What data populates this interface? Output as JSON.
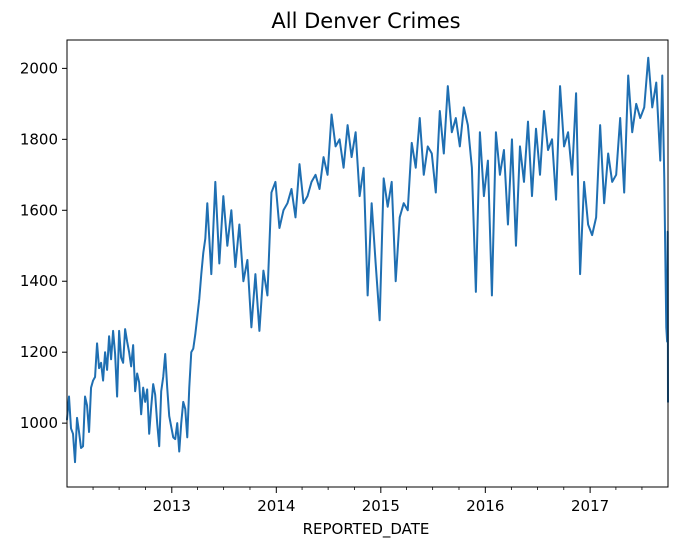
{
  "chart_data": {
    "type": "line",
    "title": "All Denver Crimes",
    "xlabel": "REPORTED_DATE",
    "ylabel": "",
    "x_type": "date",
    "xlim": [
      "2012-01-01",
      "2017-09-30"
    ],
    "ylim": [
      820,
      2080
    ],
    "x_ticks": [
      {
        "value": "2013-01-01",
        "label": "2013"
      },
      {
        "value": "2014-01-01",
        "label": "2014"
      },
      {
        "value": "2015-01-01",
        "label": "2015"
      },
      {
        "value": "2016-01-01",
        "label": "2016"
      },
      {
        "value": "2017-01-01",
        "label": "2017"
      }
    ],
    "y_ticks": [
      1000,
      1200,
      1400,
      1600,
      1800,
      2000
    ],
    "grid": false,
    "legend": "none",
    "color": "#1f6fb2",
    "series": [
      {
        "x": [
          "2012-01-01",
          "2012-01-08",
          "2012-01-15",
          "2012-01-22",
          "2012-01-29",
          "2012-02-05",
          "2012-02-12",
          "2012-02-19",
          "2012-02-26",
          "2012-03-04",
          "2012-03-11",
          "2012-03-18",
          "2012-03-25",
          "2012-04-01",
          "2012-04-08",
          "2012-04-15",
          "2012-04-22",
          "2012-04-29",
          "2012-05-06",
          "2012-05-13",
          "2012-05-20",
          "2012-05-27",
          "2012-06-03",
          "2012-06-10",
          "2012-06-17",
          "2012-06-24",
          "2012-07-01",
          "2012-07-08",
          "2012-07-15",
          "2012-07-22",
          "2012-07-29",
          "2012-08-05",
          "2012-08-12",
          "2012-08-19",
          "2012-08-26",
          "2012-09-02",
          "2012-09-09",
          "2012-09-16",
          "2012-09-23",
          "2012-09-30",
          "2012-10-07",
          "2012-10-14",
          "2012-10-21",
          "2012-10-28",
          "2012-11-04",
          "2012-11-11",
          "2012-11-18",
          "2012-11-25",
          "2012-12-02",
          "2012-12-09",
          "2012-12-16",
          "2012-12-23",
          "2012-12-30",
          "2013-01-06",
          "2013-01-13",
          "2013-01-20",
          "2013-01-27",
          "2013-02-03",
          "2013-02-10",
          "2013-02-17",
          "2013-02-24",
          "2013-03-03",
          "2013-03-10",
          "2013-03-17",
          "2013-03-24",
          "2013-03-31",
          "2013-04-07",
          "2013-04-14",
          "2013-04-21",
          "2013-04-28",
          "2013-05-05",
          "2013-05-19",
          "2013-06-02",
          "2013-06-16",
          "2013-06-30",
          "2013-07-14",
          "2013-07-28",
          "2013-08-11",
          "2013-08-25",
          "2013-09-08",
          "2013-09-22",
          "2013-10-06",
          "2013-10-20",
          "2013-11-03",
          "2013-11-17",
          "2013-12-01",
          "2013-12-15",
          "2013-12-29",
          "2014-01-12",
          "2014-01-26",
          "2014-02-09",
          "2014-02-23",
          "2014-03-09",
          "2014-03-23",
          "2014-04-06",
          "2014-04-20",
          "2014-05-04",
          "2014-05-18",
          "2014-06-01",
          "2014-06-15",
          "2014-06-29",
          "2014-07-13",
          "2014-07-27",
          "2014-08-10",
          "2014-08-24",
          "2014-09-07",
          "2014-09-21",
          "2014-10-05",
          "2014-10-19",
          "2014-11-02",
          "2014-11-16",
          "2014-11-30",
          "2014-12-14",
          "2014-12-28",
          "2015-01-11",
          "2015-01-25",
          "2015-02-08",
          "2015-02-22",
          "2015-03-08",
          "2015-03-22",
          "2015-04-05",
          "2015-04-19",
          "2015-05-03",
          "2015-05-17",
          "2015-05-31",
          "2015-06-14",
          "2015-06-28",
          "2015-07-12",
          "2015-07-26",
          "2015-08-09",
          "2015-08-23",
          "2015-09-06",
          "2015-09-20",
          "2015-10-04",
          "2015-10-18",
          "2015-11-01",
          "2015-11-15",
          "2015-11-29",
          "2015-12-13",
          "2015-12-27",
          "2016-01-10",
          "2016-01-24",
          "2016-02-07",
          "2016-02-21",
          "2016-03-06",
          "2016-03-20",
          "2016-04-03",
          "2016-04-17",
          "2016-05-01",
          "2016-05-15",
          "2016-05-29",
          "2016-06-12",
          "2016-06-26",
          "2016-07-10",
          "2016-07-24",
          "2016-08-07",
          "2016-08-21",
          "2016-09-04",
          "2016-09-18",
          "2016-10-02",
          "2016-10-16",
          "2016-10-30",
          "2016-11-13",
          "2016-11-27",
          "2016-12-11",
          "2016-12-25",
          "2017-01-08",
          "2017-01-22",
          "2017-02-05",
          "2017-02-19",
          "2017-03-05",
          "2017-03-19",
          "2017-04-02",
          "2017-04-16",
          "2017-04-30",
          "2017-05-14",
          "2017-05-28",
          "2017-06-11",
          "2017-06-25",
          "2017-07-09",
          "2017-07-23",
          "2017-08-06",
          "2017-08-20",
          "2017-09-03",
          "2017-09-10",
          "2017-09-17",
          "2017-09-24",
          "2017-09-27",
          "2017-09-29",
          "2017-09-30"
        ],
        "y": [
          1010,
          1075,
          985,
          970,
          890,
          1015,
          975,
          930,
          935,
          1075,
          1050,
          975,
          1100,
          1120,
          1130,
          1225,
          1155,
          1170,
          1120,
          1200,
          1150,
          1245,
          1180,
          1260,
          1195,
          1075,
          1260,
          1185,
          1170,
          1265,
          1230,
          1200,
          1160,
          1220,
          1090,
          1140,
          1115,
          1025,
          1100,
          1060,
          1095,
          970,
          1045,
          1110,
          1080,
          1000,
          935,
          1090,
          1130,
          1195,
          1100,
          1020,
          990,
          960,
          955,
          1000,
          920,
          1000,
          1060,
          1040,
          960,
          1100,
          1200,
          1210,
          1250,
          1300,
          1350,
          1420,
          1480,
          1520,
          1620,
          1420,
          1680,
          1450,
          1640,
          1500,
          1600,
          1440,
          1560,
          1400,
          1460,
          1270,
          1420,
          1260,
          1430,
          1360,
          1650,
          1680,
          1550,
          1600,
          1620,
          1660,
          1580,
          1730,
          1620,
          1640,
          1680,
          1700,
          1660,
          1750,
          1700,
          1870,
          1780,
          1800,
          1720,
          1840,
          1750,
          1820,
          1640,
          1720,
          1360,
          1620,
          1450,
          1290,
          1690,
          1610,
          1680,
          1400,
          1580,
          1620,
          1600,
          1790,
          1720,
          1860,
          1700,
          1780,
          1760,
          1650,
          1880,
          1760,
          1950,
          1820,
          1860,
          1780,
          1890,
          1840,
          1720,
          1370,
          1820,
          1640,
          1740,
          1360,
          1820,
          1700,
          1770,
          1560,
          1800,
          1500,
          1780,
          1680,
          1850,
          1640,
          1830,
          1700,
          1880,
          1770,
          1800,
          1630,
          1950,
          1780,
          1820,
          1700,
          1930,
          1420,
          1680,
          1560,
          1530,
          1580,
          1840,
          1620,
          1760,
          1680,
          1700,
          1860,
          1650,
          1980,
          1820,
          1900,
          1860,
          1890,
          2030,
          1890,
          1960,
          1740,
          1980,
          1690,
          1270,
          1230,
          1540,
          1060
        ]
      }
    ]
  }
}
